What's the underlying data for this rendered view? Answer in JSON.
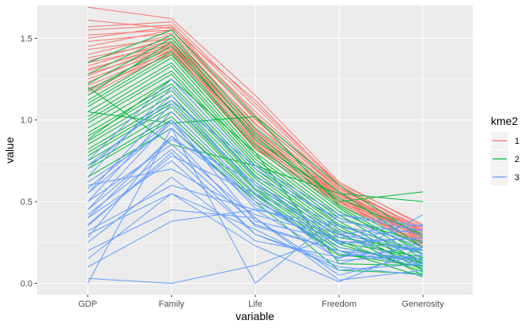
{
  "chart_data": {
    "type": "line",
    "xlabel": "variable",
    "ylabel": "value",
    "categories": [
      "GDP",
      "Family",
      "Life",
      "Freedom",
      "Generosity"
    ],
    "ylim": [
      -0.07,
      1.7
    ],
    "yticks": [
      0.0,
      0.5,
      1.0,
      1.5
    ],
    "ytick_labels": [
      "0.0",
      "0.5",
      "1.0",
      "1.5"
    ],
    "grid": true,
    "legend": {
      "title": "kme2",
      "position": "right",
      "entries": [
        {
          "label": "1",
          "color": "#F8766D"
        },
        {
          "label": "2",
          "color": "#00BA38"
        },
        {
          "label": "3",
          "color": "#619CFF"
        }
      ]
    },
    "series": [
      {
        "cluster": "1",
        "color": "#F8766D",
        "values": [
          1.69,
          1.62,
          1.15,
          0.62,
          0.35
        ]
      },
      {
        "cluster": "1",
        "color": "#F8766D",
        "values": [
          1.61,
          1.56,
          1.12,
          0.6,
          0.33
        ]
      },
      {
        "cluster": "1",
        "color": "#F8766D",
        "values": [
          1.57,
          1.6,
          1.1,
          0.61,
          0.36
        ]
      },
      {
        "cluster": "1",
        "color": "#F8766D",
        "values": [
          1.55,
          1.58,
          1.08,
          0.6,
          0.32
        ]
      },
      {
        "cluster": "1",
        "color": "#F8766D",
        "values": [
          1.52,
          1.55,
          1.05,
          0.59,
          0.3
        ]
      },
      {
        "cluster": "1",
        "color": "#F8766D",
        "values": [
          1.5,
          1.57,
          1.03,
          0.58,
          0.34
        ]
      },
      {
        "cluster": "1",
        "color": "#F8766D",
        "values": [
          1.48,
          1.53,
          1.01,
          0.57,
          0.29
        ]
      },
      {
        "cluster": "1",
        "color": "#F8766D",
        "values": [
          1.45,
          1.55,
          1.0,
          0.58,
          0.31
        ]
      },
      {
        "cluster": "1",
        "color": "#F8766D",
        "values": [
          1.43,
          1.5,
          0.98,
          0.56,
          0.28
        ]
      },
      {
        "cluster": "1",
        "color": "#F8766D",
        "values": [
          1.4,
          1.52,
          0.97,
          0.55,
          0.33
        ]
      },
      {
        "cluster": "1",
        "color": "#F8766D",
        "values": [
          1.38,
          1.48,
          0.95,
          0.56,
          0.27
        ]
      },
      {
        "cluster": "1",
        "color": "#F8766D",
        "values": [
          1.36,
          1.5,
          0.94,
          0.54,
          0.3
        ]
      },
      {
        "cluster": "1",
        "color": "#F8766D",
        "values": [
          1.35,
          1.46,
          0.93,
          0.55,
          0.26
        ]
      },
      {
        "cluster": "1",
        "color": "#F8766D",
        "values": [
          1.33,
          1.48,
          0.92,
          0.53,
          0.29
        ]
      },
      {
        "cluster": "1",
        "color": "#F8766D",
        "values": [
          1.31,
          1.45,
          0.91,
          0.54,
          0.32
        ]
      },
      {
        "cluster": "1",
        "color": "#F8766D",
        "values": [
          1.3,
          1.47,
          0.9,
          0.52,
          0.25
        ]
      },
      {
        "cluster": "1",
        "color": "#F8766D",
        "values": [
          1.28,
          1.44,
          0.89,
          0.53,
          0.28
        ]
      },
      {
        "cluster": "1",
        "color": "#F8766D",
        "values": [
          1.27,
          1.46,
          0.88,
          0.51,
          0.24
        ]
      },
      {
        "cluster": "1",
        "color": "#F8766D",
        "values": [
          1.25,
          1.43,
          0.87,
          0.52,
          0.27
        ]
      },
      {
        "cluster": "1",
        "color": "#F8766D",
        "values": [
          1.23,
          1.45,
          0.86,
          0.5,
          0.3
        ]
      },
      {
        "cluster": "1",
        "color": "#F8766D",
        "values": [
          1.21,
          1.42,
          0.85,
          0.51,
          0.23
        ]
      },
      {
        "cluster": "1",
        "color": "#F8766D",
        "values": [
          1.19,
          1.4,
          0.84,
          0.49,
          0.26
        ]
      },
      {
        "cluster": "1",
        "color": "#F8766D",
        "values": [
          1.17,
          1.43,
          0.83,
          0.5,
          0.22
        ]
      },
      {
        "cluster": "1",
        "color": "#F8766D",
        "values": [
          1.15,
          1.41,
          0.82,
          0.48,
          0.25
        ]
      },
      {
        "cluster": "2",
        "color": "#00BA38",
        "values": [
          1.35,
          1.55,
          1.02,
          0.6,
          0.28
        ]
      },
      {
        "cluster": "2",
        "color": "#00BA38",
        "values": [
          1.28,
          1.52,
          0.95,
          0.56,
          0.22
        ]
      },
      {
        "cluster": "2",
        "color": "#00BA38",
        "values": [
          1.22,
          1.5,
          0.92,
          0.5,
          0.56
        ]
      },
      {
        "cluster": "2",
        "color": "#00BA38",
        "values": [
          1.18,
          1.45,
          0.9,
          0.47,
          0.18
        ]
      },
      {
        "cluster": "2",
        "color": "#00BA38",
        "values": [
          1.15,
          1.48,
          0.88,
          0.52,
          0.3
        ]
      },
      {
        "cluster": "2",
        "color": "#00BA38",
        "values": [
          1.12,
          1.42,
          0.85,
          0.46,
          0.15
        ]
      },
      {
        "cluster": "2",
        "color": "#00BA38",
        "values": [
          1.1,
          1.4,
          0.83,
          0.44,
          0.2
        ]
      },
      {
        "cluster": "2",
        "color": "#00BA38",
        "values": [
          1.08,
          1.38,
          0.8,
          0.42,
          0.12
        ]
      },
      {
        "cluster": "2",
        "color": "#00BA38",
        "values": [
          1.05,
          1.35,
          0.78,
          0.4,
          0.25
        ]
      },
      {
        "cluster": "2",
        "color": "#00BA38",
        "values": [
          1.02,
          1.33,
          0.76,
          0.38,
          0.1
        ]
      },
      {
        "cluster": "2",
        "color": "#00BA38",
        "values": [
          1.0,
          1.3,
          0.74,
          0.36,
          0.18
        ]
      },
      {
        "cluster": "2",
        "color": "#00BA38",
        "values": [
          0.98,
          1.28,
          0.72,
          0.35,
          0.08
        ]
      },
      {
        "cluster": "2",
        "color": "#00BA38",
        "values": [
          0.95,
          1.25,
          0.7,
          0.33,
          0.14
        ]
      },
      {
        "cluster": "2",
        "color": "#00BA38",
        "values": [
          0.92,
          1.22,
          0.68,
          0.31,
          0.05
        ]
      },
      {
        "cluster": "2",
        "color": "#00BA38",
        "values": [
          0.9,
          1.2,
          0.66,
          0.3,
          0.12
        ]
      },
      {
        "cluster": "2",
        "color": "#00BA38",
        "values": [
          0.87,
          1.18,
          0.64,
          0.28,
          0.2
        ]
      },
      {
        "cluster": "2",
        "color": "#00BA38",
        "values": [
          0.85,
          1.15,
          0.62,
          0.26,
          0.07
        ]
      },
      {
        "cluster": "2",
        "color": "#00BA38",
        "values": [
          0.82,
          1.12,
          0.6,
          0.25,
          0.16
        ]
      },
      {
        "cluster": "2",
        "color": "#00BA38",
        "values": [
          0.8,
          1.1,
          0.58,
          0.24,
          0.09
        ]
      },
      {
        "cluster": "2",
        "color": "#00BA38",
        "values": [
          0.78,
          1.08,
          0.57,
          0.22,
          0.13
        ]
      },
      {
        "cluster": "2",
        "color": "#00BA38",
        "values": [
          0.75,
          1.05,
          0.55,
          0.2,
          0.04
        ]
      },
      {
        "cluster": "2",
        "color": "#00BA38",
        "values": [
          0.72,
          1.02,
          0.54,
          0.18,
          0.1
        ]
      },
      {
        "cluster": "2",
        "color": "#00BA38",
        "values": [
          0.7,
          1.0,
          0.52,
          0.17,
          0.15
        ]
      },
      {
        "cluster": "2",
        "color": "#00BA38",
        "values": [
          0.65,
          0.95,
          0.5,
          0.08,
          0.06
        ]
      },
      {
        "cluster": "2",
        "color": "#00BA38",
        "values": [
          1.2,
          0.85,
          0.72,
          0.55,
          0.5
        ]
      },
      {
        "cluster": "2",
        "color": "#00BA38",
        "values": [
          1.05,
          0.98,
          1.02,
          0.48,
          0.22
        ]
      },
      {
        "cluster": "2",
        "color": "#00BA38",
        "values": [
          0.88,
          1.25,
          0.8,
          0.12,
          0.11
        ]
      },
      {
        "cluster": "3",
        "color": "#619CFF",
        "values": [
          0.03,
          0.0,
          0.11,
          0.3,
          0.2
        ]
      },
      {
        "cluster": "3",
        "color": "#619CFF",
        "values": [
          0.0,
          0.95,
          0.0,
          0.42,
          0.32
        ]
      },
      {
        "cluster": "3",
        "color": "#619CFF",
        "values": [
          0.1,
          0.38,
          0.45,
          0.15,
          0.42
        ]
      },
      {
        "cluster": "3",
        "color": "#619CFF",
        "values": [
          0.2,
          0.45,
          0.4,
          0.05,
          0.18
        ]
      },
      {
        "cluster": "3",
        "color": "#619CFF",
        "values": [
          0.3,
          0.55,
          0.23,
          0.01,
          0.22
        ]
      },
      {
        "cluster": "3",
        "color": "#619CFF",
        "values": [
          0.35,
          0.8,
          0.3,
          0.12,
          0.25
        ]
      },
      {
        "cluster": "3",
        "color": "#619CFF",
        "values": [
          0.4,
          0.9,
          0.35,
          0.2,
          0.15
        ]
      },
      {
        "cluster": "3",
        "color": "#619CFF",
        "values": [
          0.45,
          1.0,
          0.5,
          0.25,
          0.28
        ]
      },
      {
        "cluster": "3",
        "color": "#619CFF",
        "values": [
          0.5,
          1.05,
          0.55,
          0.3,
          0.1
        ]
      },
      {
        "cluster": "3",
        "color": "#619CFF",
        "values": [
          0.55,
          1.1,
          0.6,
          0.35,
          0.2
        ]
      },
      {
        "cluster": "3",
        "color": "#619CFF",
        "values": [
          0.6,
          0.7,
          0.42,
          0.28,
          0.33
        ]
      },
      {
        "cluster": "3",
        "color": "#619CFF",
        "values": [
          0.62,
          0.95,
          0.48,
          0.22,
          0.12
        ]
      },
      {
        "cluster": "3",
        "color": "#619CFF",
        "values": [
          0.65,
          1.2,
          0.65,
          0.4,
          0.22
        ]
      },
      {
        "cluster": "3",
        "color": "#619CFF",
        "values": [
          0.7,
          1.15,
          0.58,
          0.32,
          0.18
        ]
      },
      {
        "cluster": "3",
        "color": "#619CFF",
        "values": [
          0.75,
          1.25,
          0.7,
          0.38,
          0.3
        ]
      },
      {
        "cluster": "3",
        "color": "#619CFF",
        "values": [
          0.4,
          0.75,
          0.3,
          0.1,
          0.05
        ]
      },
      {
        "cluster": "3",
        "color": "#619CFF",
        "values": [
          0.32,
          0.6,
          0.45,
          0.35,
          0.26
        ]
      },
      {
        "cluster": "3",
        "color": "#619CFF",
        "values": [
          0.28,
          0.9,
          0.52,
          0.18,
          0.14
        ]
      },
      {
        "cluster": "3",
        "color": "#619CFF",
        "values": [
          0.5,
          0.85,
          0.4,
          0.02,
          0.08
        ]
      },
      {
        "cluster": "3",
        "color": "#619CFF",
        "values": [
          0.58,
          1.0,
          0.38,
          0.26,
          0.2
        ]
      },
      {
        "cluster": "3",
        "color": "#619CFF",
        "values": [
          0.36,
          0.78,
          0.55,
          0.14,
          0.17
        ]
      },
      {
        "cluster": "3",
        "color": "#619CFF",
        "values": [
          0.45,
          0.88,
          0.62,
          0.24,
          0.28
        ]
      },
      {
        "cluster": "3",
        "color": "#619CFF",
        "values": [
          0.72,
          1.12,
          0.72,
          0.42,
          0.35
        ]
      },
      {
        "cluster": "3",
        "color": "#619CFF",
        "values": [
          0.15,
          0.55,
          0.33,
          0.08,
          0.12
        ]
      },
      {
        "cluster": "3",
        "color": "#619CFF",
        "values": [
          0.25,
          0.65,
          0.26,
          0.16,
          0.22
        ]
      },
      {
        "cluster": "3",
        "color": "#619CFF",
        "values": [
          0.55,
          0.98,
          0.46,
          0.3,
          0.36
        ]
      },
      {
        "cluster": "3",
        "color": "#619CFF",
        "values": [
          0.42,
          0.82,
          0.36,
          0.2,
          0.1
        ]
      }
    ]
  }
}
